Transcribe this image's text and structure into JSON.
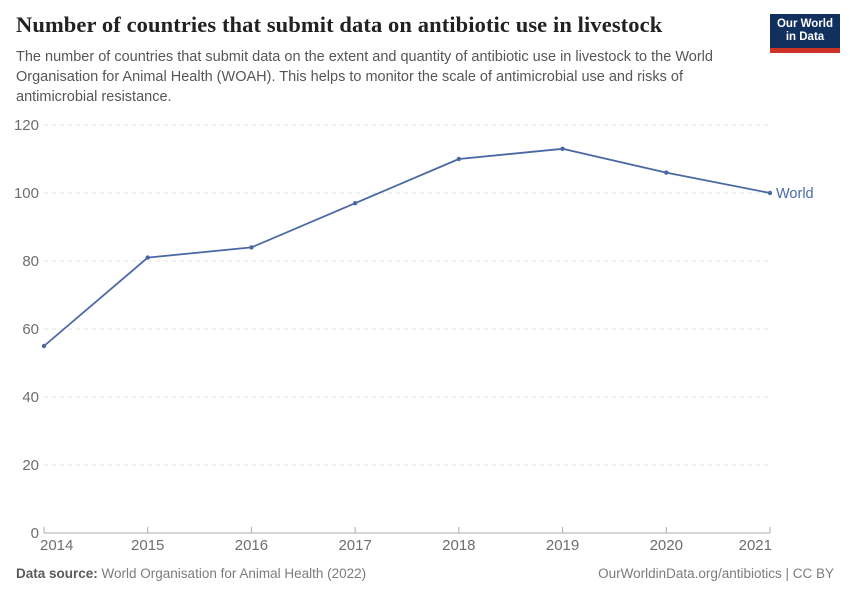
{
  "header": {
    "title": "Number of countries that submit data on antibiotic use in livestock",
    "subtitle": "The number of countries that submit data on the extent and quantity of antibiotic use in livestock to the World Organisation for Animal Health (WOAH). This helps to monitor the scale of antimicrobial use and risks of antimicrobial resistance."
  },
  "logo": {
    "line1": "Our World",
    "line2": "in Data",
    "bg_color": "#12305e",
    "accent_color": "#cc3226"
  },
  "chart_data": {
    "type": "line",
    "title": "Number of countries that submit data on antibiotic use in livestock",
    "x": [
      2014,
      2015,
      2016,
      2017,
      2018,
      2019,
      2020,
      2021
    ],
    "series": [
      {
        "name": "World",
        "values": [
          55,
          81,
          84,
          97,
          110,
          113,
          106,
          100
        ],
        "color": "#4a68a4"
      }
    ],
    "xlabel": "",
    "ylabel": "",
    "ylim": [
      0,
      120
    ],
    "yticks": [
      0,
      20,
      40,
      60,
      80,
      100,
      120
    ],
    "grid": "horizontal-dashed",
    "legend": "line-end-label",
    "axis_label_color": "#6e6e6e",
    "grid_color": "#e0e0e0",
    "axis_color": "#ababab"
  },
  "footer": {
    "source_label": "Data source:",
    "source_value": " World Organisation for Animal Health (2022)",
    "credit": "OurWorldinData.org/antibiotics | CC BY"
  }
}
